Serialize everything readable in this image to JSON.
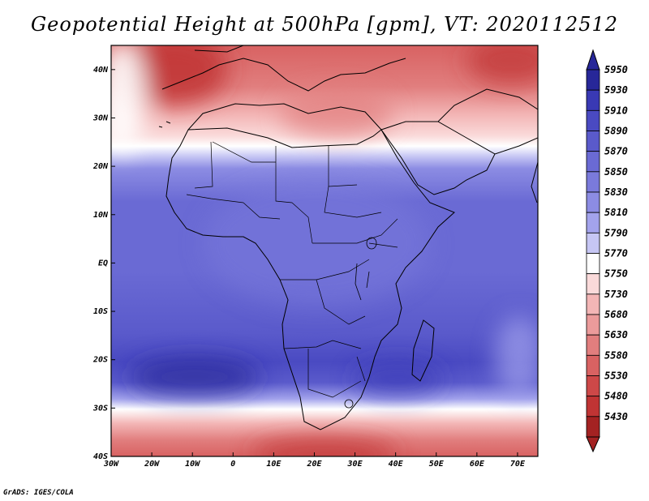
{
  "title": "Geopotential Height at 500hPa [gpm], VT: 2020112512",
  "credit": "GrADS: IGES/COLA",
  "map": {
    "lon_labels": [
      "30W",
      "20W",
      "10W",
      "0",
      "10E",
      "20E",
      "30E",
      "40E",
      "50E",
      "60E",
      "70E"
    ],
    "lat_labels": [
      "40N",
      "30N",
      "20N",
      "10N",
      "EQ",
      "10S",
      "20S",
      "30S",
      "40S"
    ],
    "lon_range": [
      -30,
      75
    ],
    "lat_range": [
      -40,
      45
    ],
    "region": "Africa"
  },
  "colorbar": {
    "levels": [
      "5950",
      "5930",
      "5910",
      "5890",
      "5870",
      "5850",
      "5830",
      "5810",
      "5790",
      "5770",
      "5750",
      "5730",
      "5680",
      "5630",
      "5580",
      "5530",
      "5480",
      "5430"
    ],
    "colors": [
      "#272799",
      "#3939b4",
      "#4a4ac2",
      "#5a5acb",
      "#6a6ad4",
      "#7a7adb",
      "#8c8ce3",
      "#a3a3ec",
      "#c6c6f4",
      "#ffffff",
      "#fadada",
      "#f3b6b6",
      "#eb9b9b",
      "#e17e7e",
      "#d86262",
      "#cd4848",
      "#c03434",
      "#a42222"
    ]
  }
}
